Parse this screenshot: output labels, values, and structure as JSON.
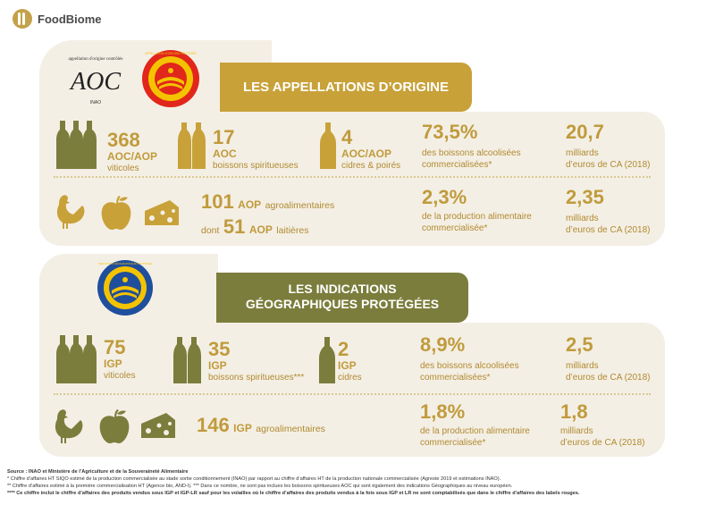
{
  "brand": {
    "name": "FoodBiome"
  },
  "logos": {
    "aoc_arc_text": "appellation d'origine contrôlée",
    "aoc_mark": "AOC",
    "aoc_brand": "INAO",
    "aop_badge_text": "APPELLATION D'ORIGINE PROTÉGÉE",
    "igp_badge_text": "INDICATION GÉOGRAPHIQUE PROTÉGÉE"
  },
  "section1": {
    "title": "LES APPELLATIONS D’ORIGINE",
    "row1": [
      {
        "number": "368",
        "label": "AOC/AOP",
        "desc": "viticoles"
      },
      {
        "number": "17",
        "label": "AOC",
        "desc": "boissons spiritueuses"
      },
      {
        "number": "4",
        "label": "AOC/AOP",
        "desc": "cidres & poirés"
      },
      {
        "number": "73,5%",
        "desc1": "des boissons alcoolisées",
        "desc2": "commercialisées*"
      },
      {
        "number": "20,7",
        "desc1": "milliards",
        "desc2": "d’euros de CA (2018)"
      }
    ],
    "row2": {
      "count1": "101",
      "label1": "AOP",
      "text1": "agroalimentaires",
      "prefix2": "dont",
      "count2": "51",
      "label2": "AOP",
      "text2": "laitières",
      "pct": "2,3%",
      "pct_desc1": "de la production alimentaire",
      "pct_desc2": "commercialisée*",
      "ca": "2,35",
      "ca_desc1": "milliards",
      "ca_desc2": "d’euros de CA (2018)"
    }
  },
  "section2": {
    "title_line1": "LES INDICATIONS",
    "title_line2": "GÉOGRAPHIQUES PROTÉGÉES",
    "row1": [
      {
        "number": "75",
        "label": "IGP",
        "desc": "viticoles"
      },
      {
        "number": "35",
        "label": "IGP",
        "desc": "boissons spiritueuses***"
      },
      {
        "number": "2",
        "label": "IGP",
        "desc": "cidres"
      },
      {
        "number": "8,9%",
        "desc1": "des boissons alcoolisées",
        "desc2": "commercialisées*"
      },
      {
        "number": "2,5",
        "desc1": "milliards",
        "desc2": "d’euros de CA (2018)"
      }
    ],
    "row2": {
      "count": "146",
      "label": "IGP",
      "text": "agroalimentaires",
      "pct": "1,8%",
      "pct_desc1": "de la production alimentaire",
      "pct_desc2": "commercialisée*",
      "ca": "1,8",
      "ca_desc1": "milliards",
      "ca_desc2": "d’euros de CA (2018)"
    }
  },
  "footer": {
    "line1": "Source : INAO et Ministère de l’Agriculture et de la Souveraineté Alimentaire",
    "line2": "* Chiffre d’affaires HT SIQO estimé de la production commercialisée au stade sortie conditionnement (INAO) par rapport au chiffre d’affaires HT de la production nationale commercialisée (Agreste 2019 et estimations INAO).",
    "line3": "** Chiffre d’affaires estimé à la première commercialisation HT (Agence bio, AND-I). *** Dans ce nombre, ne sont pas inclues les boissons spiritueuses AOC qui sont également des indications Géographiques au niveau européen.",
    "line4": "**** Ce chiffre inclut le chiffre d’affaires des produits vendus sous IGP et IGP-LR sauf pour les volailles où le chiffre d’affaires des produits vendus à la fois sous IGP et LR ne sont comptabilisés que dans le chiffre d’affaires des labels rouges."
  }
}
